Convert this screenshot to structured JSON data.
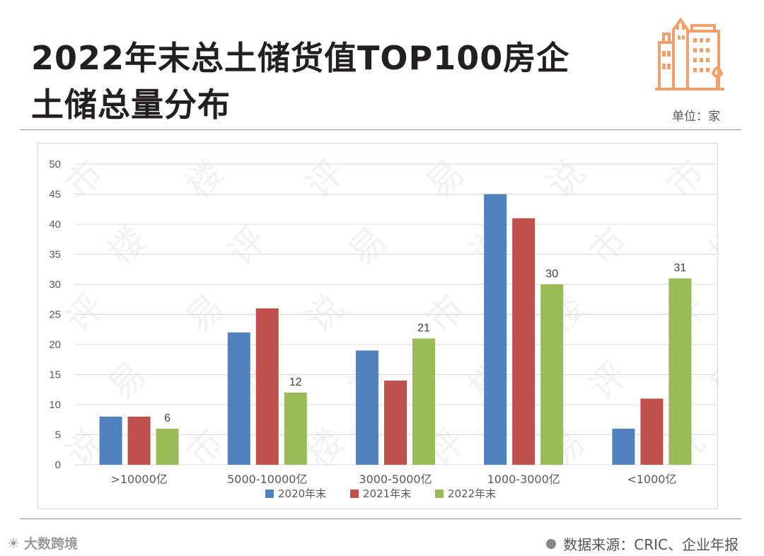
{
  "header": {
    "title_line1": "2022年末总土储货值TOP100房企",
    "title_line2": "土储总量分布",
    "unit": "单位：家"
  },
  "footer": {
    "source": "数据来源：CRIC、企业年报",
    "brand": "大数跨境",
    "brand_icon": "weibo-icon"
  },
  "watermark": "市 楼 评 易 说",
  "colors": {
    "series_2020": "#4f81bd",
    "series_2021": "#c0504d",
    "series_2022": "#9bbb59",
    "logo": "#f0a06a",
    "grid": "#d9d9d9"
  },
  "chart_data": {
    "type": "bar",
    "title": "",
    "xlabel": "",
    "ylabel": "",
    "ylim": [
      0,
      50
    ],
    "yticks": [
      "0",
      "5",
      "10",
      "15",
      "20",
      "25",
      "30",
      "35",
      "40",
      "45",
      "50"
    ],
    "grid": true,
    "legend_position": "bottom",
    "categories": [
      ">10000亿",
      "5000-10000亿",
      "3000-5000亿",
      "1000-3000亿",
      "<1000亿"
    ],
    "series": [
      {
        "name": "2020年末",
        "values": [
          8,
          22,
          19,
          45,
          6
        ]
      },
      {
        "name": "2021年末",
        "values": [
          8,
          26,
          14,
          41,
          11
        ]
      },
      {
        "name": "2022年末",
        "values": [
          6,
          12,
          21,
          30,
          31
        ],
        "labeled": true
      }
    ]
  }
}
